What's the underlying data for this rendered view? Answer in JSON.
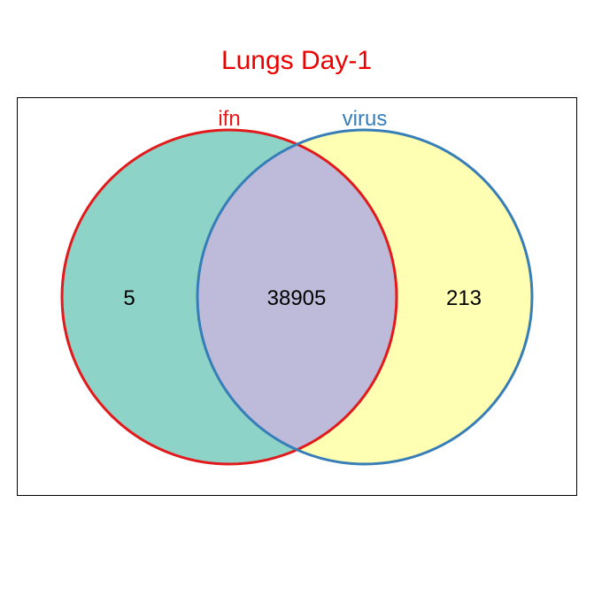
{
  "chart_data": {
    "type": "venn",
    "title": "Lungs Day-1",
    "title_color": "#ee0000",
    "sets": [
      {
        "name": "ifn",
        "only": 5,
        "fill": "#8dd3c7",
        "stroke": "#e31a1c",
        "label_color": "#e31a1c"
      },
      {
        "name": "virus",
        "only": 213,
        "fill": "#ffffb3",
        "stroke": "#377eb8",
        "label_color": "#377eb8"
      }
    ],
    "intersection": {
      "sets": [
        "ifn",
        "virus"
      ],
      "value": 38905,
      "fill": "#bebada"
    },
    "frame": true
  }
}
